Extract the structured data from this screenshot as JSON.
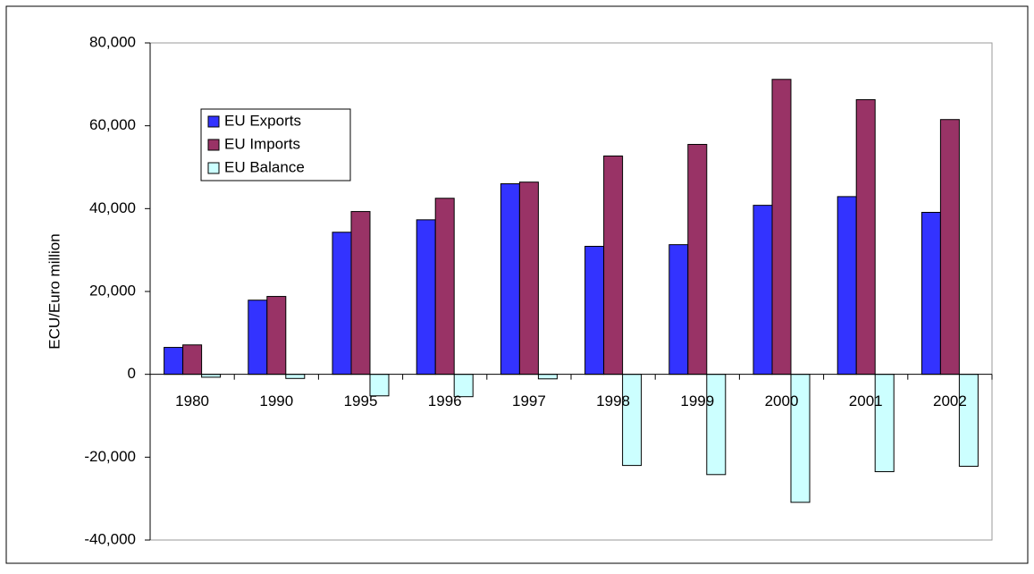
{
  "chart_data": {
    "type": "bar",
    "y_label": "ECU/Euro million",
    "categories": [
      "1980",
      "1990",
      "1995",
      "1996",
      "1997",
      "1998",
      "1999",
      "2000",
      "2001",
      "2002"
    ],
    "series": [
      {
        "name": "EU Exports",
        "color": "#3333ff",
        "values": [
          6500,
          17900,
          34300,
          37300,
          46000,
          30900,
          31300,
          40800,
          42900,
          39100
        ]
      },
      {
        "name": "EU Imports",
        "color": "#993366",
        "values": [
          7100,
          18800,
          39300,
          42500,
          46400,
          52700,
          55500,
          71200,
          66300,
          61500
        ]
      },
      {
        "name": "EU Balance",
        "color": "#ccffff",
        "values": [
          -700,
          -1000,
          -5200,
          -5400,
          -1100,
          -22000,
          -24200,
          -30900,
          -23500,
          -22200
        ]
      }
    ],
    "ylim": [
      -40000,
      80000
    ],
    "yticks": [
      {
        "value": -40000,
        "label": "-40,000"
      },
      {
        "value": -20000,
        "label": "-20,000"
      },
      0,
      {
        "value": 20000,
        "label": "20,000"
      },
      {
        "value": 40000,
        "label": "40,000"
      },
      {
        "value": 60000,
        "label": "60,000"
      },
      {
        "value": 80000,
        "label": "80,000"
      }
    ],
    "grid": false,
    "legend": "upper left"
  }
}
